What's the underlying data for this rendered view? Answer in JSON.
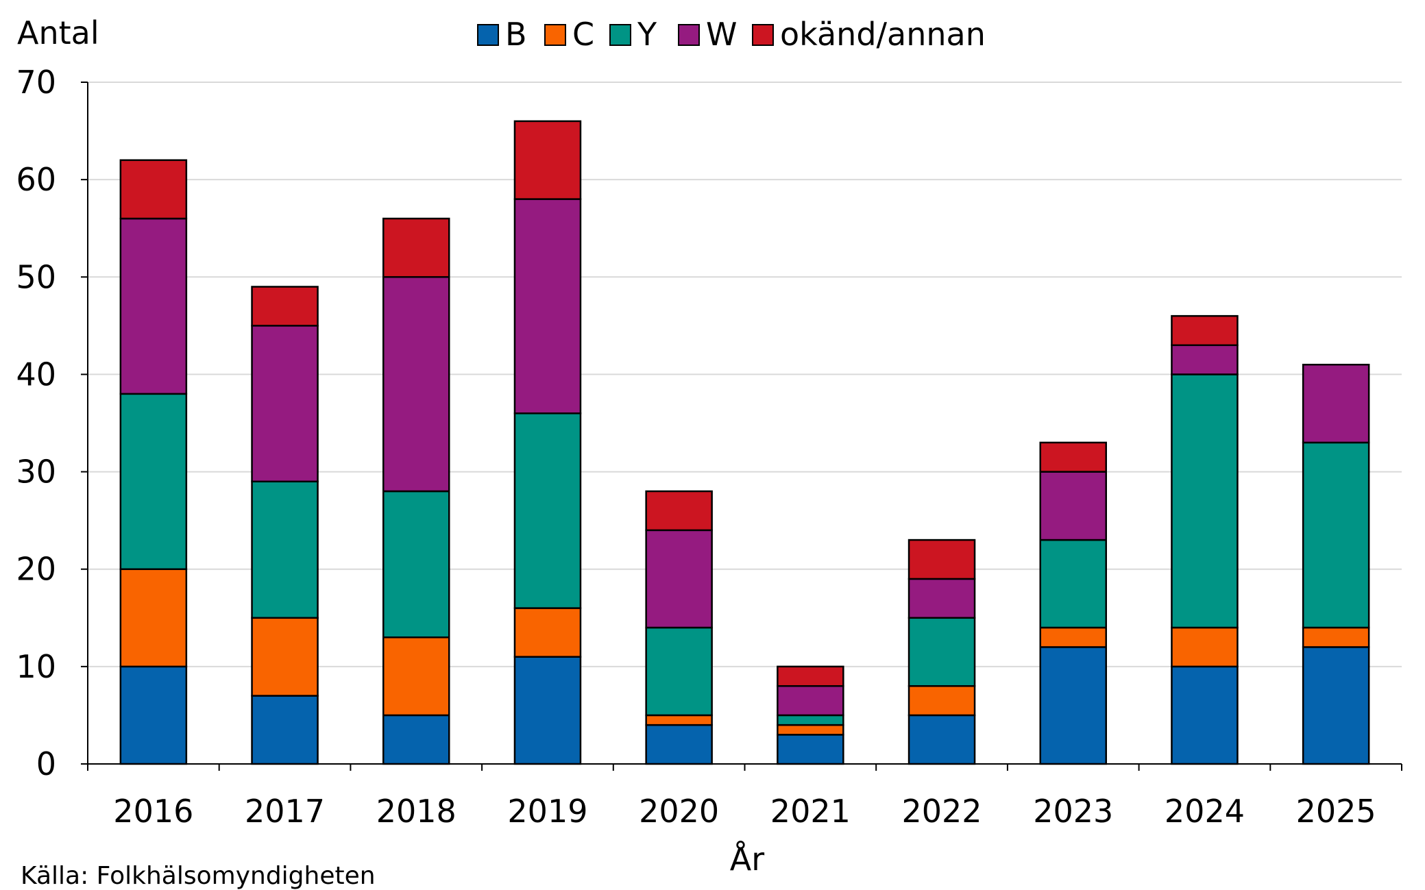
{
  "chart_data": {
    "type": "bar",
    "stacked": true,
    "categories": [
      "2016",
      "2017",
      "2018",
      "2019",
      "2020",
      "2021",
      "2022",
      "2023",
      "2024",
      "2025"
    ],
    "series": [
      {
        "name": "B",
        "color": "#0563ad",
        "values": [
          10,
          7,
          5,
          11,
          4,
          3,
          5,
          12,
          10,
          12
        ]
      },
      {
        "name": "C",
        "color": "#f96400",
        "values": [
          10,
          8,
          8,
          5,
          1,
          1,
          3,
          2,
          4,
          2
        ]
      },
      {
        "name": "Y",
        "color": "#009485",
        "values": [
          18,
          14,
          15,
          20,
          9,
          1,
          7,
          9,
          26,
          19
        ]
      },
      {
        "name": "W",
        "color": "#951b80",
        "values": [
          18,
          16,
          22,
          22,
          10,
          3,
          4,
          7,
          3,
          8
        ]
      },
      {
        "name": "okänd/annan",
        "color": "#cc1521",
        "values": [
          6,
          4,
          6,
          8,
          4,
          2,
          4,
          3,
          3,
          0
        ]
      }
    ],
    "xlabel": "År",
    "ylabel": "Antal",
    "ylim": [
      0,
      70
    ],
    "yticks": [
      "0",
      "10",
      "20",
      "30",
      "40",
      "50",
      "60",
      "70"
    ],
    "grid": true,
    "legend": "top-center"
  },
  "source": "Källa: Folkhälsomyndigheten"
}
